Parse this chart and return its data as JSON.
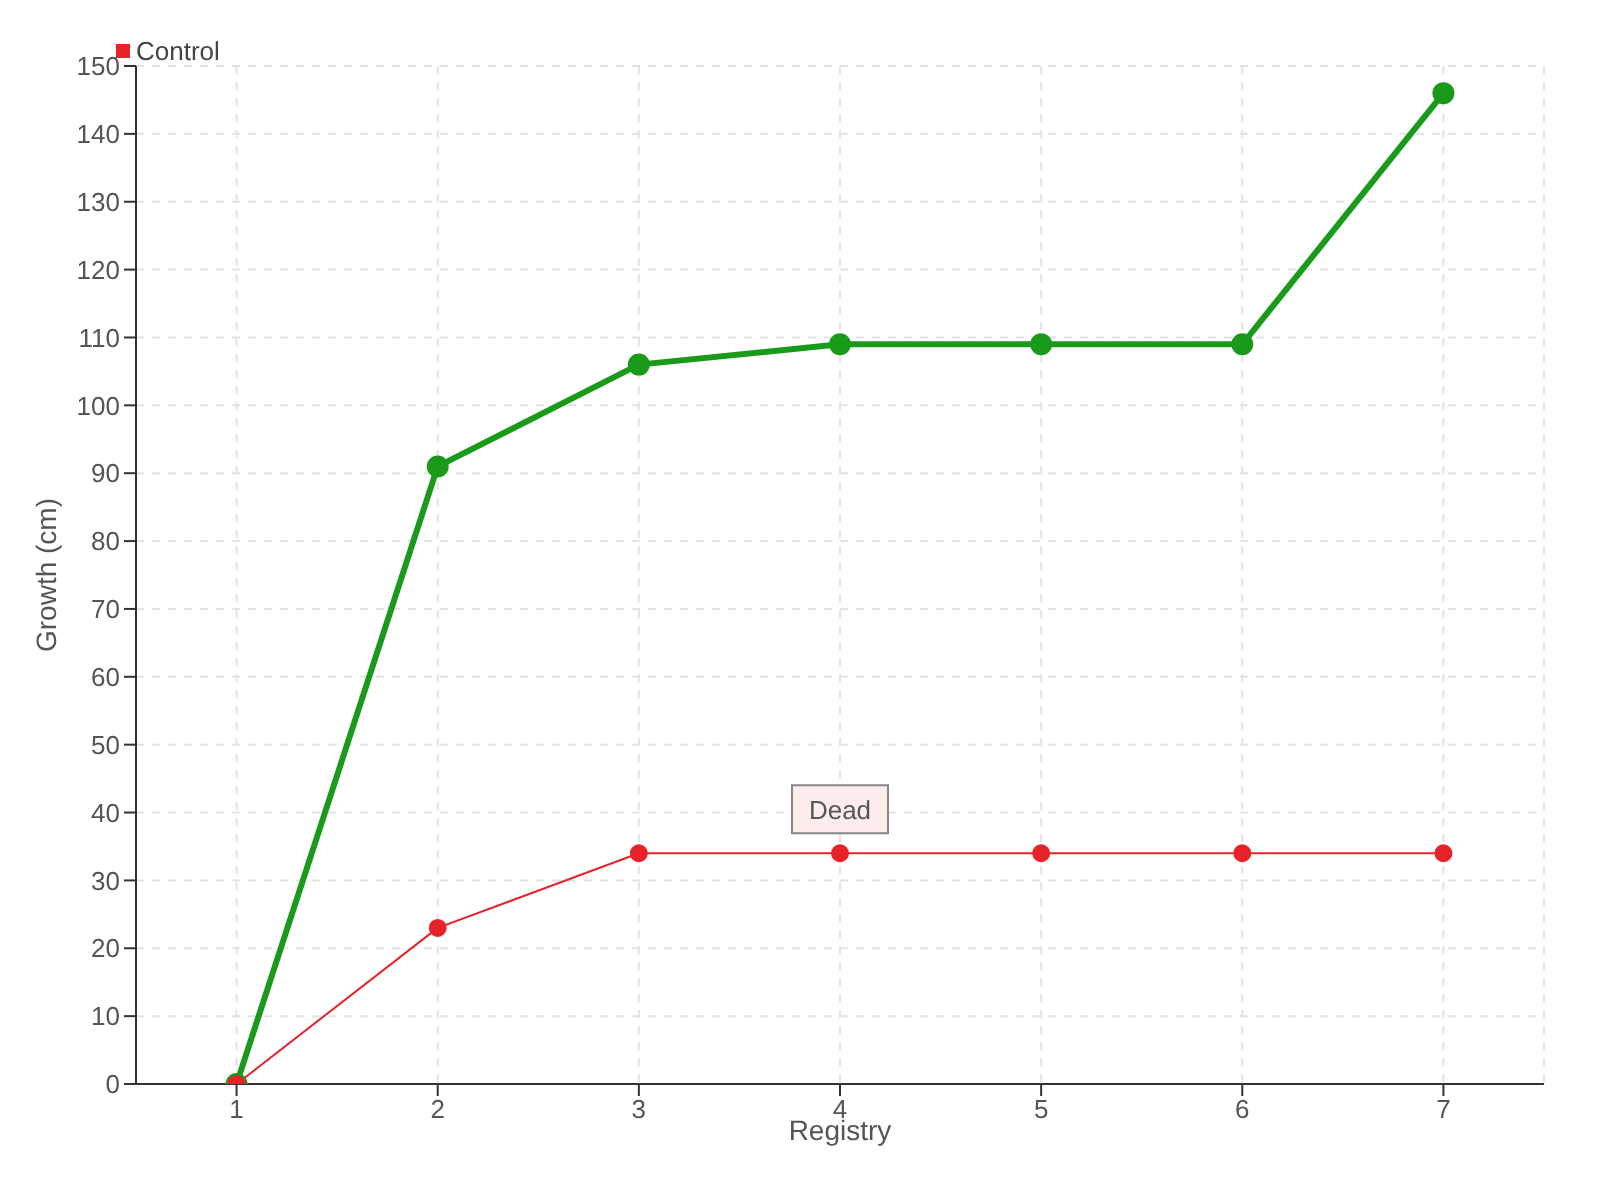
{
  "chart_data": {
    "type": "line",
    "xlabel": "Registry",
    "ylabel": "Growth (cm)",
    "x": [
      1,
      2,
      3,
      4,
      5,
      6,
      7
    ],
    "xlim": [
      0.5,
      7.5
    ],
    "xticks": [
      1,
      2,
      3,
      4,
      5,
      6,
      7
    ],
    "ylim": [
      0,
      150
    ],
    "yticks": [
      0,
      10,
      20,
      30,
      40,
      50,
      60,
      70,
      80,
      90,
      100,
      110,
      120,
      130,
      140,
      150
    ],
    "series": [
      {
        "color": "#1a9a1a",
        "values": [
          0,
          91,
          106,
          109,
          109,
          109,
          146
        ]
      },
      {
        "name": "Control",
        "color": "#e8222a",
        "values": [
          0,
          23,
          34,
          34,
          34,
          34,
          34
        ]
      }
    ],
    "annotations": [
      {
        "text": "Dead",
        "x": 4,
        "y": 34
      }
    ],
    "grid": true,
    "legend": "top left",
    "marker": "circle",
    "line_style": "solid"
  }
}
